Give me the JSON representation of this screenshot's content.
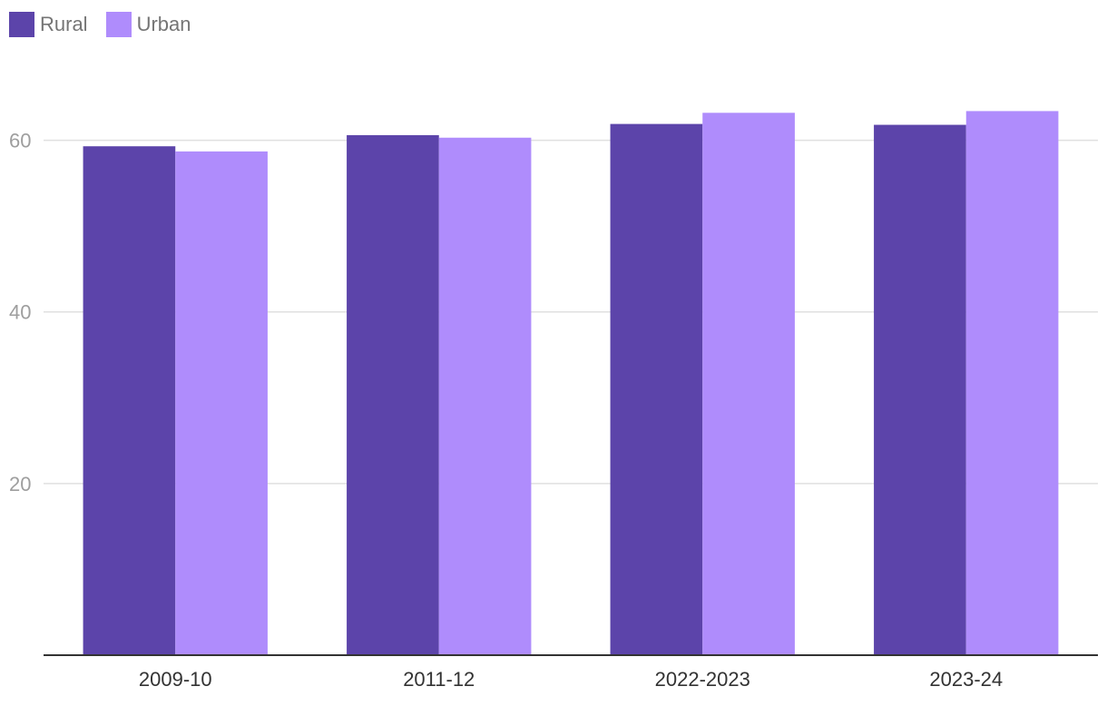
{
  "chart_data": {
    "type": "bar",
    "categories": [
      "2009-10",
      "2011-12",
      "2022-2023",
      "2023-24"
    ],
    "series": [
      {
        "name": "Rural",
        "values": [
          59.3,
          60.6,
          61.9,
          61.8
        ],
        "color": "#5c44aa"
      },
      {
        "name": "Urban",
        "values": [
          58.7,
          60.3,
          63.2,
          63.4
        ],
        "color": "#af8cfc"
      }
    ],
    "ylim": [
      0,
      70
    ],
    "yticks": [
      20,
      40,
      60
    ],
    "ytick_labels": [
      "20",
      "40",
      "60"
    ],
    "grid": true,
    "legend_position": "top-left",
    "colors": {
      "gridline": "#e0e0e0",
      "axis": "#333333",
      "tick_label": "#9e9e9e",
      "category_label": "#333333"
    }
  }
}
